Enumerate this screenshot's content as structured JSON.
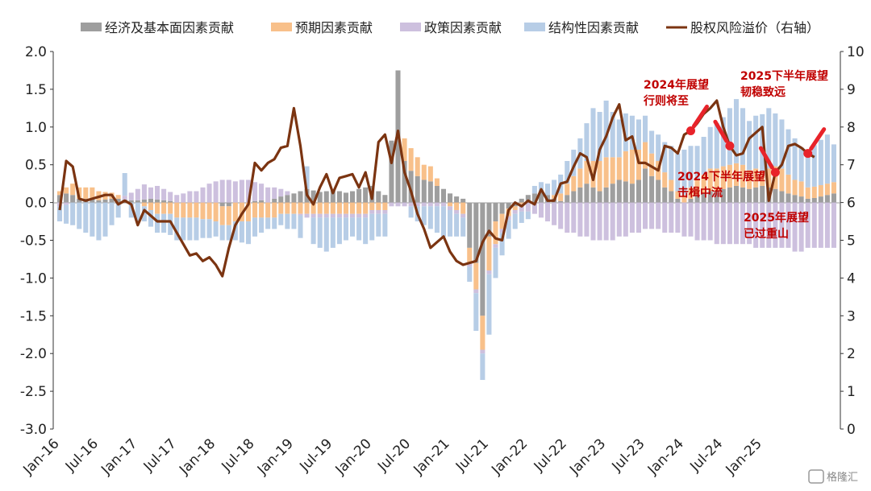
{
  "chart_data": {
    "type": "bar+line",
    "title": "",
    "y_left": {
      "ylim": [
        -3.0,
        2.0
      ],
      "ticks": [
        "2.0",
        "1.5",
        "1.0",
        "0.5",
        "0.0",
        "-0.5",
        "-1.0",
        "-1.5",
        "-2.0",
        "-2.5",
        "-3.0"
      ]
    },
    "y_right": {
      "ylim": [
        0,
        10
      ],
      "ticks": [
        "10",
        "9",
        "8",
        "7",
        "6",
        "5",
        "4",
        "3",
        "2",
        "1",
        "0"
      ]
    },
    "x_ticks": [
      "Jan-16",
      "Jul-16",
      "Jan-17",
      "Jul-17",
      "Jan-18",
      "Jul-18",
      "Jan-19",
      "Jul-19",
      "Jan-20",
      "Jul-20",
      "Jan-21",
      "Jul-21",
      "Jan-22",
      "Jul-22",
      "Jan-23",
      "Jul-23",
      "Jan-24",
      "Jul-24",
      "Jan-25"
    ],
    "legend": [
      "经济及基本面因素贡献",
      "预期因素贡献",
      "政策因素贡献",
      "结构性因素贡献",
      "股权风险溢价（右轴）"
    ],
    "colors": {
      "economy": "#9e9e9e",
      "expectation": "#f8c08a",
      "policy": "#cdc0de",
      "structural": "#b7cde6",
      "erp": "#7b3411",
      "annotation": "#c00000",
      "marker": "#e8232a"
    },
    "series": [
      {
        "name": "经济及基本面因素贡献",
        "values": [
          0.1,
          0.12,
          0.1,
          0.05,
          0.05,
          0.05,
          0.03,
          0.04,
          0.05,
          0.05,
          0.04,
          0.03,
          0.03,
          0.04,
          0.05,
          0.04,
          0.03,
          0.02,
          0.0,
          0.0,
          0.0,
          0.0,
          0.0,
          0.0,
          0.0,
          -0.05,
          -0.05,
          0.0,
          0.0,
          0.0,
          0.02,
          0.03,
          0.0,
          0.05,
          0.08,
          0.1,
          0.12,
          0.15,
          0.18,
          0.16,
          0.14,
          0.15,
          0.16,
          0.15,
          0.13,
          0.15,
          0.18,
          0.2,
          0.22,
          0.15,
          0.1,
          0.82,
          1.75,
          0.55,
          0.42,
          0.35,
          0.3,
          0.28,
          0.22,
          0.18,
          0.12,
          0.08,
          0.05,
          -0.6,
          -0.8,
          -1.5,
          -0.45,
          -0.25,
          -0.15,
          -0.08,
          -0.05,
          0.05,
          0.1,
          0.12,
          0.15,
          0.1,
          0.05,
          0.02,
          0.1,
          0.15,
          0.2,
          0.25,
          0.2,
          0.15,
          0.2,
          0.25,
          0.3,
          0.28,
          0.25,
          0.3,
          0.45,
          0.35,
          0.3,
          0.2,
          0.15,
          0.05,
          0.0,
          0.05,
          0.1,
          0.12,
          0.15,
          0.15,
          0.18,
          0.2,
          0.22,
          0.2,
          0.18,
          0.2,
          0.22,
          0.2,
          0.18,
          0.15,
          0.12,
          0.1,
          0.08,
          0.05,
          0.06,
          0.08,
          0.1,
          0.12
        ]
      },
      {
        "name": "预期因素贡献",
        "values": [
          0.05,
          0.08,
          0.15,
          0.15,
          0.15,
          0.15,
          0.12,
          0.1,
          0.08,
          0.05,
          0.0,
          0.0,
          0.0,
          -0.05,
          -0.1,
          -0.15,
          -0.15,
          -0.15,
          -0.2,
          -0.2,
          -0.2,
          -0.2,
          -0.22,
          -0.22,
          -0.25,
          -0.25,
          -0.25,
          -0.25,
          -0.25,
          -0.25,
          -0.2,
          -0.2,
          -0.2,
          -0.2,
          -0.15,
          -0.15,
          -0.15,
          -0.15,
          -0.15,
          -0.15,
          -0.15,
          -0.15,
          -0.15,
          -0.15,
          -0.15,
          -0.15,
          -0.15,
          -0.15,
          -0.1,
          -0.1,
          -0.1,
          0.0,
          0.0,
          0.3,
          0.3,
          0.25,
          0.2,
          0.2,
          0.1,
          0.0,
          -0.05,
          -0.1,
          -0.15,
          -0.2,
          -0.35,
          -0.45,
          -0.45,
          -0.3,
          -0.2,
          -0.1,
          -0.05,
          -0.02,
          0.0,
          0.0,
          0.0,
          0.0,
          0.05,
          0.1,
          0.15,
          0.2,
          0.25,
          0.3,
          0.35,
          0.4,
          0.4,
          0.35,
          0.3,
          0.4,
          0.45,
          0.4,
          0.35,
          0.3,
          0.25,
          0.2,
          0.15,
          0.1,
          0.1,
          0.15,
          0.2,
          0.25,
          0.3,
          0.3,
          0.3,
          0.3,
          0.3,
          0.3,
          0.25,
          0.25,
          0.2,
          0.25,
          0.3,
          0.3,
          0.25,
          0.2,
          0.2,
          0.15,
          0.15,
          0.15,
          0.15,
          0.15
        ]
      },
      {
        "name": "政策因素贡献",
        "values": [
          -0.05,
          -0.03,
          0.0,
          0.0,
          0.0,
          0.0,
          0.0,
          0.0,
          0.0,
          0.0,
          0.05,
          0.1,
          0.15,
          0.2,
          0.15,
          0.18,
          0.15,
          0.12,
          0.1,
          0.12,
          0.15,
          0.15,
          0.2,
          0.25,
          0.28,
          0.3,
          0.3,
          0.28,
          0.3,
          0.3,
          0.25,
          0.22,
          0.2,
          0.15,
          0.1,
          0.05,
          0.0,
          -0.02,
          -0.05,
          -0.05,
          -0.05,
          -0.05,
          -0.05,
          -0.05,
          -0.05,
          -0.05,
          -0.05,
          -0.05,
          -0.05,
          -0.05,
          -0.05,
          -0.05,
          -0.05,
          -0.05,
          -0.05,
          -0.05,
          -0.05,
          -0.05,
          -0.05,
          -0.05,
          -0.05,
          -0.05,
          -0.05,
          -0.05,
          -0.05,
          -0.05,
          -0.05,
          -0.05,
          -0.05,
          -0.05,
          -0.05,
          -0.1,
          -0.12,
          -0.15,
          -0.2,
          -0.25,
          -0.3,
          -0.35,
          -0.4,
          -0.4,
          -0.45,
          -0.45,
          -0.5,
          -0.5,
          -0.5,
          -0.5,
          -0.45,
          -0.45,
          -0.4,
          -0.4,
          -0.35,
          -0.35,
          -0.35,
          -0.4,
          -0.4,
          -0.4,
          -0.45,
          -0.45,
          -0.5,
          -0.5,
          -0.5,
          -0.55,
          -0.55,
          -0.55,
          -0.55,
          -0.55,
          -0.55,
          -0.6,
          -0.6,
          -0.6,
          -0.6,
          -0.6,
          -0.6,
          -0.65,
          -0.65,
          -0.6,
          -0.6,
          -0.6,
          -0.6,
          -0.6
        ]
      },
      {
        "name": "结构性因素贡献",
        "values": [
          -0.2,
          -0.25,
          -0.3,
          -0.35,
          -0.4,
          -0.45,
          -0.5,
          -0.45,
          -0.3,
          -0.2,
          0.3,
          -0.2,
          -0.25,
          -0.2,
          -0.22,
          -0.25,
          -0.25,
          -0.28,
          -0.3,
          -0.3,
          -0.3,
          -0.3,
          -0.25,
          -0.25,
          -0.2,
          -0.2,
          -0.2,
          -0.25,
          -0.28,
          -0.3,
          -0.25,
          -0.2,
          -0.15,
          -0.15,
          -0.15,
          -0.2,
          -0.2,
          -0.3,
          0.3,
          -0.35,
          -0.4,
          -0.45,
          -0.4,
          -0.35,
          -0.3,
          -0.25,
          -0.3,
          -0.35,
          -0.35,
          -0.3,
          -0.3,
          0.0,
          0.0,
          0.0,
          -0.15,
          -0.2,
          -0.25,
          -0.3,
          -0.35,
          -0.4,
          -0.35,
          -0.3,
          -0.25,
          -0.2,
          -0.5,
          -0.35,
          -0.8,
          -0.4,
          -0.3,
          -0.25,
          -0.2,
          -0.15,
          -0.1,
          0.1,
          0.12,
          0.15,
          0.2,
          0.25,
          0.3,
          0.35,
          0.4,
          0.5,
          0.7,
          0.65,
          0.75,
          0.6,
          0.5,
          0.5,
          0.45,
          0.4,
          0.35,
          0.3,
          0.35,
          0.4,
          0.45,
          0.5,
          0.6,
          0.55,
          0.45,
          0.5,
          0.55,
          0.6,
          0.65,
          0.75,
          0.85,
          0.75,
          0.65,
          0.7,
          0.75,
          0.8,
          0.7,
          0.65,
          0.6,
          0.55,
          0.45,
          0.5,
          0.55,
          0.6,
          0.65,
          0.5
        ]
      },
      {
        "name": "股权风险溢价（右轴）",
        "values": [
          5.8,
          7.1,
          6.95,
          6.1,
          6.05,
          6.1,
          6.15,
          6.2,
          6.2,
          5.95,
          6.05,
          5.95,
          5.4,
          5.8,
          5.65,
          5.5,
          5.5,
          5.5,
          5.2,
          4.9,
          4.6,
          4.65,
          4.45,
          4.55,
          4.35,
          4.05,
          4.8,
          5.4,
          5.7,
          5.95,
          7.05,
          6.85,
          7.05,
          7.15,
          7.45,
          7.5,
          8.5,
          7.5,
          6.2,
          5.95,
          6.4,
          6.75,
          6.25,
          6.65,
          6.7,
          6.75,
          6.4,
          6.8,
          6.1,
          7.6,
          7.8,
          7.05,
          7.9,
          6.8,
          6.3,
          5.7,
          5.3,
          4.8,
          4.95,
          5.1,
          4.7,
          4.45,
          4.35,
          4.4,
          4.45,
          4.95,
          5.25,
          5.05,
          5.0,
          5.8,
          6.0,
          5.9,
          6.05,
          5.95,
          6.35,
          6.05,
          6.05,
          6.5,
          6.55,
          6.95,
          7.3,
          7.2,
          6.6,
          7.4,
          7.75,
          8.25,
          8.6,
          7.65,
          7.75,
          7.05,
          7.05,
          6.95,
          6.85,
          7.5,
          7.45,
          7.3,
          7.8,
          7.9,
          8.1,
          8.35,
          8.5,
          8.7,
          8.0,
          7.5,
          7.25,
          7.3,
          7.7,
          7.85,
          8.0,
          6.05,
          6.8,
          7.0,
          7.5,
          7.55,
          7.45,
          7.3,
          7.2
        ]
      }
    ]
  },
  "annotations": [
    {
      "lines": [
        "2024年展望",
        "行则将至"
      ]
    },
    {
      "lines": [
        "2025下半年展望",
        "韧稳致远"
      ]
    },
    {
      "lines": [
        "2024下半年展望",
        "击楫中流"
      ]
    },
    {
      "lines": [
        "2025年展望",
        "已过重山"
      ]
    }
  ],
  "watermark": "格隆汇"
}
